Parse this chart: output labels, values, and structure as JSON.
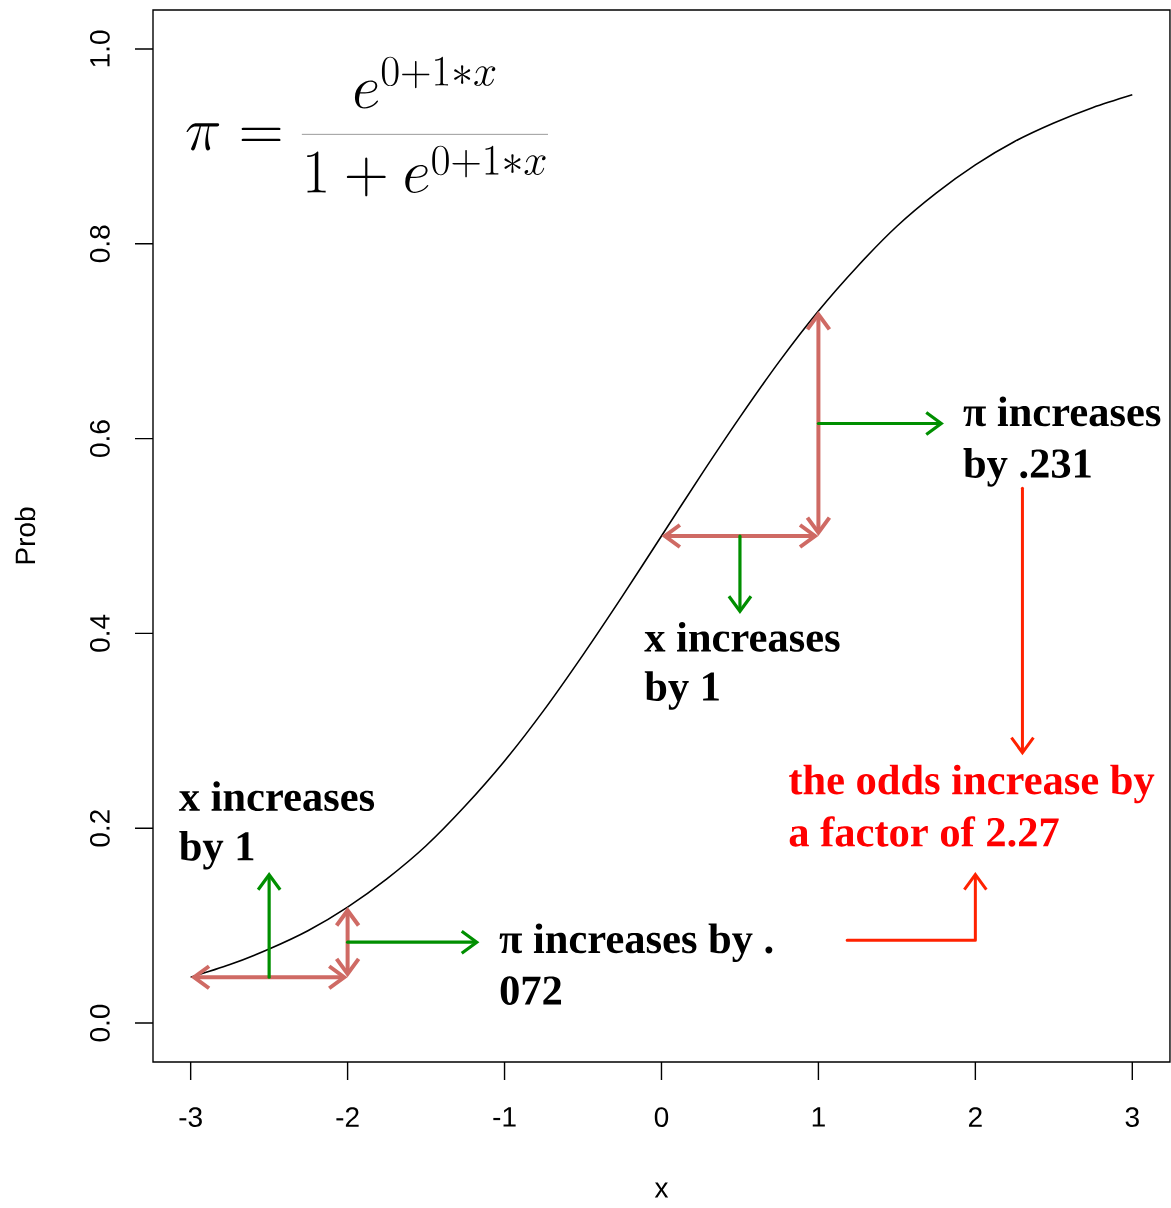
{
  "chart_data": {
    "type": "line",
    "xlabel": "x",
    "ylabel": "Prob",
    "x": [
      -3,
      -2.75,
      -2.5,
      -2.25,
      -2,
      -1.75,
      -1.5,
      -1.25,
      -1,
      -0.75,
      -0.5,
      -0.25,
      0,
      0.25,
      0.5,
      0.75,
      1,
      1.25,
      1.5,
      1.75,
      2,
      2.25,
      2.5,
      2.75,
      3
    ],
    "series": [
      {
        "color": "#000000",
        "values": [
          0.047,
          0.06,
          0.076,
          0.095,
          0.119,
          0.148,
          0.182,
          0.223,
          0.269,
          0.321,
          0.378,
          0.438,
          0.5,
          0.562,
          0.622,
          0.679,
          0.731,
          0.777,
          0.818,
          0.852,
          0.881,
          0.905,
          0.924,
          0.94,
          0.953
        ]
      }
    ],
    "xlim": [
      -3.24,
      3.24
    ],
    "ylim": [
      -0.04,
      1.04
    ],
    "xticks": [
      -3,
      -2,
      -1,
      0,
      1,
      2,
      3
    ],
    "yticks": [
      {
        "value": 0,
        "label": "0.0"
      },
      0.2,
      0.4,
      0.6,
      0.8,
      {
        "value": 1,
        "label": "1.0"
      }
    ],
    "annotations": [
      "\\pi = \\frac{e^{0+1*x}}{1+e^{0+1*x}}",
      "x increases",
      "by 1",
      "π increases by .",
      "072",
      "x increases",
      "by 1",
      "π increases",
      "by .231",
      "the odds increase by",
      "a factor of 2.27"
    ]
  }
}
